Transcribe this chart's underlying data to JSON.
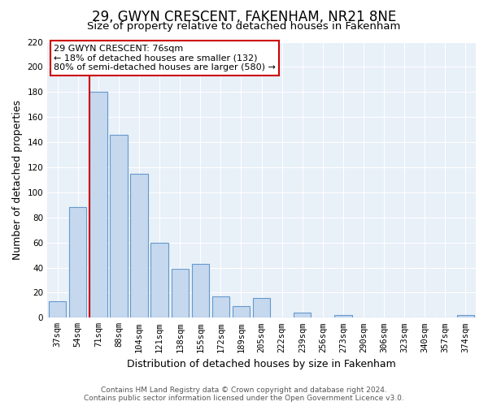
{
  "title": "29, GWYN CRESCENT, FAKENHAM, NR21 8NE",
  "subtitle": "Size of property relative to detached houses in Fakenham",
  "xlabel": "Distribution of detached houses by size in Fakenham",
  "ylabel": "Number of detached properties",
  "categories": [
    "37sqm",
    "54sqm",
    "71sqm",
    "88sqm",
    "104sqm",
    "121sqm",
    "138sqm",
    "155sqm",
    "172sqm",
    "189sqm",
    "205sqm",
    "222sqm",
    "239sqm",
    "256sqm",
    "273sqm",
    "290sqm",
    "306sqm",
    "323sqm",
    "340sqm",
    "357sqm",
    "374sqm"
  ],
  "values": [
    13,
    88,
    180,
    146,
    115,
    60,
    39,
    43,
    17,
    9,
    16,
    0,
    4,
    0,
    2,
    0,
    0,
    0,
    0,
    0,
    2
  ],
  "bar_color": "#c5d8ee",
  "bar_edge_color": "#6699cc",
  "vline_color": "#cc0000",
  "vline_x_index": 2,
  "ylim": [
    0,
    220
  ],
  "yticks": [
    0,
    20,
    40,
    60,
    80,
    100,
    120,
    140,
    160,
    180,
    200,
    220
  ],
  "annotation_title": "29 GWYN CRESCENT: 76sqm",
  "annotation_line1": "← 18% of detached houses are smaller (132)",
  "annotation_line2": "80% of semi-detached houses are larger (580) →",
  "footer_line1": "Contains HM Land Registry data © Crown copyright and database right 2024.",
  "footer_line2": "Contains public sector information licensed under the Open Government Licence v3.0.",
  "background_color": "#ffffff",
  "plot_bg_color": "#e8f0f8",
  "grid_color": "#ffffff",
  "title_fontsize": 12,
  "subtitle_fontsize": 9.5,
  "axis_label_fontsize": 9,
  "tick_fontsize": 7.5,
  "ann_fontsize": 8,
  "footer_fontsize": 6.5
}
